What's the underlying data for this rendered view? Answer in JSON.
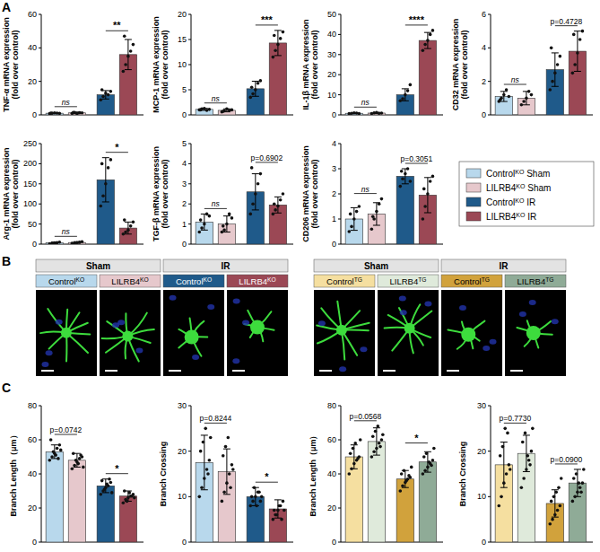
{
  "figure": {
    "panel_labels": [
      "A",
      "B",
      "C"
    ],
    "legend": [
      {
        "base": "Control",
        "sup": "KO",
        "suffix": " Sham",
        "color": "#b8d8ec"
      },
      {
        "base": "LILRB4",
        "sup": "KO",
        "suffix": " Sham",
        "color": "#e6c8cc"
      },
      {
        "base": "Control",
        "sup": "KO",
        "suffix": " IR",
        "color": "#1f5a8a"
      },
      {
        "base": "LILRB4",
        "sup": "KO",
        "suffix": " IR",
        "color": "#9b4855"
      }
    ],
    "image_groups": [
      {
        "conditions": [
          "Sham",
          "IR"
        ],
        "labels": [
          {
            "base": "Control",
            "sup": "KO",
            "color": "#b8d8ec"
          },
          {
            "base": "LILRB4",
            "sup": "KO",
            "color": "#e6c8cc"
          },
          {
            "base": "Control",
            "sup": "KO",
            "color": "#1f5a8a"
          },
          {
            "base": "LILRB4",
            "sup": "KO",
            "color": "#9b4855"
          }
        ]
      },
      {
        "conditions": [
          "Sham",
          "IR"
        ],
        "labels": [
          {
            "base": "Control",
            "sup": "TG",
            "color": "#f5dfa0"
          },
          {
            "base": "LILRB4",
            "sup": "TG",
            "color": "#dfeadb"
          },
          {
            "base": "Control",
            "sup": "TG",
            "color": "#d1a23c"
          },
          {
            "base": "LILRB4",
            "sup": "TG",
            "color": "#8fab97"
          }
        ]
      }
    ]
  },
  "chart_data": [
    {
      "type": "bar",
      "ylabel": [
        "TNF-α mRNA expression",
        "(fold over control)"
      ],
      "categories": [
        null,
        null,
        null,
        null
      ],
      "values": [
        1,
        1.2,
        12,
        36
      ],
      "errors": [
        0.3,
        0.5,
        2.5,
        9
      ],
      "points": [
        [
          0.8,
          1.0,
          1.2,
          1.1,
          0.9,
          1.0
        ],
        [
          0.9,
          1.5,
          0.8,
          1.3,
          1.2,
          1.4
        ],
        [
          9,
          11,
          13,
          12,
          14,
          15
        ],
        [
          26,
          30,
          35,
          38,
          42,
          47
        ]
      ],
      "colors": [
        "#b8d8ec",
        "#e6c8cc",
        "#1f5a8a",
        "#9b4855"
      ],
      "ylim": [
        0,
        60
      ],
      "yticks": [
        0,
        20,
        40,
        60
      ],
      "annotations": [
        "ns",
        "**"
      ],
      "tick_labels": "y"
    },
    {
      "type": "bar",
      "ylabel": [
        "MCP-1 mRNA expression",
        "(fold over control)"
      ],
      "categories": [
        null,
        null,
        null,
        null
      ],
      "values": [
        1.1,
        0.9,
        5.2,
        14.3
      ],
      "errors": [
        0.2,
        0.3,
        1.5,
        2.5
      ],
      "points": [
        [
          1.0,
          1.2,
          1.3,
          0.9,
          1.1,
          1.0
        ],
        [
          0.6,
          0.8,
          1.2,
          0.9,
          1.0,
          0.7
        ],
        [
          3.5,
          4.2,
          5.0,
          6.3,
          6.8,
          5.5
        ],
        [
          11.5,
          12.8,
          14,
          15.2,
          16.5,
          15.8
        ]
      ],
      "colors": [
        "#b8d8ec",
        "#e6c8cc",
        "#1f5a8a",
        "#9b4855"
      ],
      "ylim": [
        0,
        20
      ],
      "yticks": [
        0,
        5,
        10,
        15,
        20
      ],
      "annotations": [
        "ns",
        "***"
      ],
      "tick_labels": "y"
    },
    {
      "type": "bar",
      "ylabel": [
        "IL-1β mRNA expression",
        "(fold over control)"
      ],
      "categories": [
        null,
        null,
        null,
        null
      ],
      "values": [
        0.8,
        0.9,
        10,
        37
      ],
      "errors": [
        0.2,
        0.3,
        3,
        4
      ],
      "points": [
        [
          0.6,
          0.8,
          1.0,
          0.9,
          0.7
        ],
        [
          0.7,
          1.0,
          1.2,
          0.8,
          0.9
        ],
        [
          7,
          8,
          10,
          12,
          15
        ],
        [
          32,
          35,
          37,
          40,
          42
        ]
      ],
      "colors": [
        "#b8d8ec",
        "#e6c8cc",
        "#1f5a8a",
        "#9b4855"
      ],
      "ylim": [
        0,
        50
      ],
      "yticks": [
        0,
        10,
        20,
        30,
        40,
        50
      ],
      "annotations": [
        "ns",
        "****"
      ],
      "tick_labels": "y"
    },
    {
      "type": "bar",
      "ylabel": [
        "CD32 mRNA expression",
        "(fold over control)"
      ],
      "categories": [
        null,
        null,
        null,
        null
      ],
      "values": [
        1.1,
        1.0,
        2.7,
        3.8
      ],
      "errors": [
        0.3,
        0.4,
        1,
        1.2
      ],
      "points": [
        [
          0.8,
          1.0,
          1.2,
          1.5,
          1.1,
          0.9
        ],
        [
          0.6,
          0.8,
          1.0,
          1.4,
          1.2
        ],
        [
          1.5,
          2.0,
          2.5,
          3.0,
          3.5,
          4.0
        ],
        [
          2.5,
          3.0,
          3.7,
          4.5,
          5.0,
          4.8
        ]
      ],
      "colors": [
        "#b8d8ec",
        "#e6c8cc",
        "#1f5a8a",
        "#9b4855"
      ],
      "ylim": [
        0,
        6
      ],
      "yticks": [
        0,
        2,
        4,
        6
      ],
      "annotations": [
        "ns",
        "p=0.4728"
      ],
      "tick_labels": "y"
    },
    {
      "type": "bar",
      "ylabel": [
        "Arg-1 mRNA expression",
        "(fold over control)"
      ],
      "categories": [
        null,
        null,
        null,
        null
      ],
      "values": [
        3,
        4,
        160,
        40
      ],
      "errors": [
        2,
        2,
        55,
        15
      ],
      "points": [
        [
          1,
          2,
          3,
          4,
          5
        ],
        [
          2,
          3,
          4,
          5,
          6
        ],
        [
          95,
          120,
          150,
          190,
          210,
          200
        ],
        [
          25,
          30,
          35,
          45,
          55,
          60
        ]
      ],
      "colors": [
        "#b8d8ec",
        "#e6c8cc",
        "#1f5a8a",
        "#9b4855"
      ],
      "ylim": [
        0,
        250
      ],
      "yticks": [
        0,
        50,
        100,
        150,
        200,
        250
      ],
      "annotations": [
        "ns",
        "*"
      ],
      "tick_labels": "y"
    },
    {
      "type": "bar",
      "ylabel": [
        "TGF-β mRNA expression",
        "(fold over control)"
      ],
      "categories": [
        null,
        null,
        null,
        null
      ],
      "values": [
        1.1,
        1.0,
        2.6,
        1.95
      ],
      "errors": [
        0.4,
        0.4,
        0.9,
        0.4
      ],
      "points": [
        [
          0.6,
          0.8,
          1.0,
          1.5,
          1.4,
          1.2
        ],
        [
          0.6,
          0.7,
          1.0,
          1.5,
          1.3,
          0.9
        ],
        [
          1.5,
          2.0,
          2.5,
          3.0,
          3.5,
          3.8
        ],
        [
          1.5,
          1.7,
          1.9,
          2.2,
          2.5,
          2.0
        ]
      ],
      "colors": [
        "#b8d8ec",
        "#e6c8cc",
        "#1f5a8a",
        "#9b4855"
      ],
      "ylim": [
        0,
        5
      ],
      "yticks": [
        0,
        1,
        2,
        3,
        4,
        5
      ],
      "annotations": [
        "ns",
        "p=0.6902"
      ],
      "tick_labels": "y"
    },
    {
      "type": "bar",
      "ylabel": [
        "CD206 mRNA expression",
        "(fold over control)"
      ],
      "categories": [
        null,
        null,
        null,
        null
      ],
      "values": [
        1.0,
        1.2,
        2.7,
        1.95
      ],
      "errors": [
        0.45,
        0.45,
        0.3,
        0.7
      ],
      "points": [
        [
          0.5,
          0.7,
          1.0,
          1.3,
          1.5,
          1.2
        ],
        [
          0.6,
          1.0,
          1.3,
          1.6,
          1.8,
          1.1
        ],
        [
          2.3,
          2.6,
          2.8,
          3.0,
          2.5,
          2.9
        ],
        [
          1.0,
          1.5,
          2.0,
          2.5,
          2.7,
          2.2
        ]
      ],
      "colors": [
        "#b8d8ec",
        "#e6c8cc",
        "#1f5a8a",
        "#9b4855"
      ],
      "ylim": [
        0,
        4
      ],
      "yticks": [
        0,
        1,
        2,
        3,
        4
      ],
      "annotations": [
        "ns",
        "p=0.3051"
      ],
      "tick_labels": "y"
    },
    {
      "type": "bar",
      "ylabel": [
        "Branch Length（μm）"
      ],
      "categories": [
        null,
        null,
        null,
        null
      ],
      "values": [
        53,
        48,
        33,
        27
      ],
      "errors": [
        4,
        4,
        4,
        3
      ],
      "points": [
        [
          48,
          50,
          52,
          55,
          57,
          60,
          53,
          51,
          49,
          54
        ],
        [
          43,
          45,
          47,
          49,
          50,
          52,
          48,
          46,
          51,
          44
        ],
        [
          28,
          30,
          32,
          33,
          35,
          36,
          31,
          34,
          37,
          29
        ],
        [
          23,
          25,
          26,
          27,
          28,
          30,
          24,
          29,
          27,
          26
        ]
      ],
      "colors": [
        "#b8d8ec",
        "#e6c8cc",
        "#1f5a8a",
        "#9b4855"
      ],
      "ylim": [
        0,
        80
      ],
      "yticks": [
        0,
        20,
        40,
        60,
        80
      ],
      "annotations": [
        "p=0.0742",
        "*"
      ],
      "tick_labels": "y"
    },
    {
      "type": "bar",
      "ylabel": [
        "Branch Crossing"
      ],
      "categories": [
        null,
        null,
        null,
        null
      ],
      "values": [
        17.5,
        15.5,
        10,
        7.3
      ],
      "errors": [
        6,
        5,
        2,
        2
      ],
      "points": [
        [
          10,
          12,
          14,
          16,
          18,
          20,
          22,
          25,
          15,
          23
        ],
        [
          9,
          11,
          13,
          15,
          17,
          19,
          21,
          23,
          12,
          16
        ],
        [
          8,
          9,
          10,
          11,
          9,
          10,
          12,
          8,
          11,
          10
        ],
        [
          5,
          6,
          7,
          8,
          9,
          7,
          6,
          8,
          5,
          7
        ]
      ],
      "colors": [
        "#b8d8ec",
        "#e6c8cc",
        "#1f5a8a",
        "#9b4855"
      ],
      "ylim": [
        0,
        30
      ],
      "yticks": [
        0,
        10,
        20,
        30
      ],
      "annotations": [
        "p=0.8244",
        "*"
      ],
      "tick_labels": "y"
    },
    {
      "type": "bar",
      "ylabel": [
        "Branch Length（μm）"
      ],
      "categories": [
        null,
        null,
        null,
        null
      ],
      "values": [
        50,
        59,
        37,
        47
      ],
      "errors": [
        7,
        8,
        5,
        6
      ],
      "points": [
        [
          40,
          43,
          46,
          48,
          50,
          52,
          55,
          58,
          49,
          60
        ],
        [
          50,
          53,
          55,
          58,
          60,
          62,
          65,
          68,
          56,
          63
        ],
        [
          30,
          33,
          35,
          37,
          38,
          40,
          42,
          36,
          39,
          44
        ],
        [
          40,
          42,
          44,
          46,
          48,
          50,
          52,
          47,
          45,
          55
        ]
      ],
      "colors": [
        "#f5dfa0",
        "#dfeadb",
        "#d1a23c",
        "#8fab97"
      ],
      "ylim": [
        0,
        80
      ],
      "yticks": [
        0,
        20,
        40,
        60,
        80
      ],
      "annotations": [
        "p=0.0568",
        "*"
      ],
      "tick_labels": "y"
    },
    {
      "type": "bar",
      "ylabel": [
        "Branch Crossing"
      ],
      "categories": [
        null,
        null,
        null,
        null
      ],
      "values": [
        17,
        19.5,
        8.5,
        13
      ],
      "errors": [
        5,
        4,
        3,
        3
      ],
      "points": [
        [
          8,
          10,
          13,
          15,
          17,
          19,
          21,
          25,
          24,
          16
        ],
        [
          12,
          14,
          16,
          18,
          20,
          22,
          24,
          19,
          17,
          25
        ],
        [
          4,
          5,
          6,
          7,
          8,
          9,
          10,
          11,
          12,
          14
        ],
        [
          9,
          10,
          11,
          12,
          13,
          14,
          15,
          13,
          11,
          16
        ]
      ],
      "colors": [
        "#f5dfa0",
        "#dfeadb",
        "#d1a23c",
        "#8fab97"
      ],
      "ylim": [
        0,
        30
      ],
      "yticks": [
        0,
        10,
        20,
        30
      ],
      "annotations": [
        "p=0.7730",
        "p=0.0900"
      ],
      "tick_labels": "y"
    }
  ]
}
